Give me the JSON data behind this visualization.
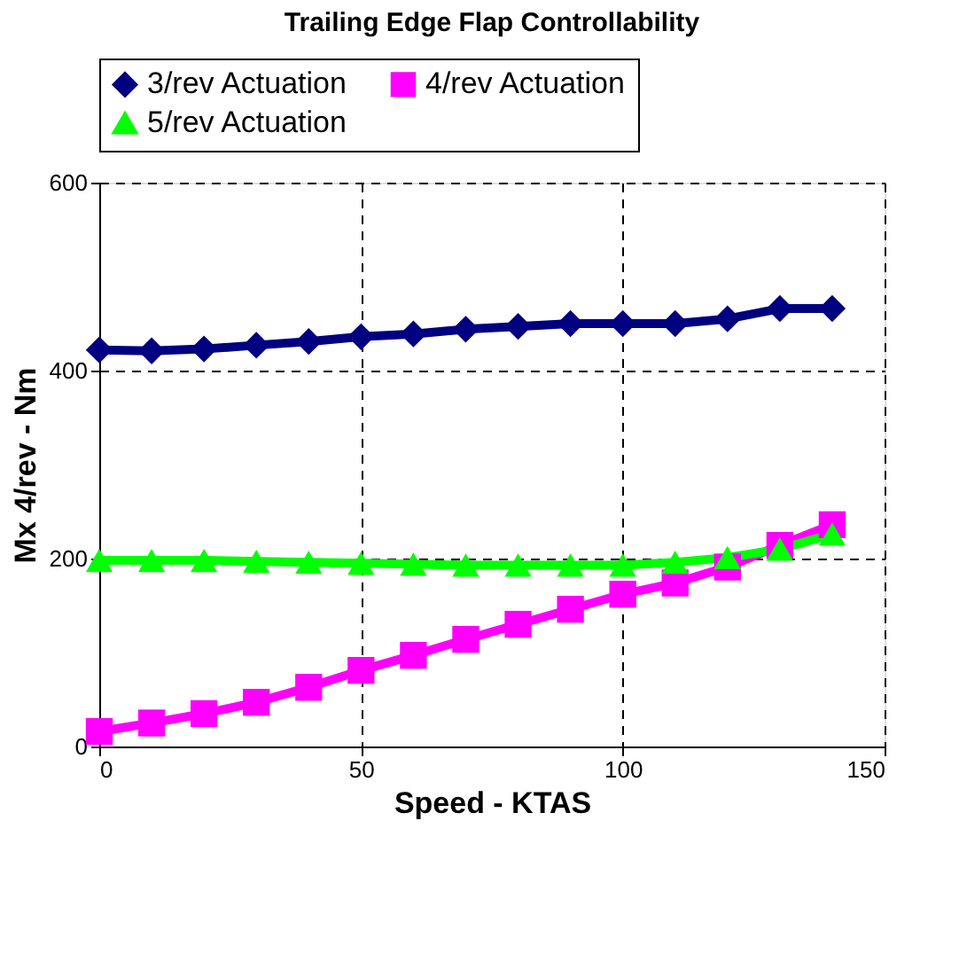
{
  "chart_data": {
    "type": "line",
    "title": "Trailing Edge Flap Controllability",
    "xlabel": "Speed - KTAS",
    "ylabel": "Mx 4/rev - Nm",
    "x": [
      0,
      10,
      20,
      30,
      40,
      50,
      60,
      70,
      80,
      90,
      100,
      110,
      120,
      130,
      140
    ],
    "series": [
      {
        "name": "3/rev Actuation",
        "color": "#000080",
        "marker": "diamond",
        "values": [
          422,
          421,
          423,
          427,
          431,
          436,
          439,
          444,
          447,
          450,
          450,
          450,
          455,
          466,
          466
        ]
      },
      {
        "name": "4/rev Actuation",
        "color": "#ff00ff",
        "marker": "square",
        "values": [
          16,
          25,
          35,
          47,
          63,
          81,
          97,
          114,
          130,
          146,
          162,
          174,
          191,
          214,
          236
        ]
      },
      {
        "name": "5/rev Actuation",
        "color": "#00ff00",
        "marker": "triangle",
        "values": [
          198,
          198,
          198,
          197,
          196,
          195,
          194,
          193,
          193,
          193,
          193,
          196,
          201,
          210,
          226
        ]
      }
    ],
    "xlim": [
      0,
      150
    ],
    "xticks": [
      0,
      50,
      100,
      150
    ],
    "ylim": [
      0,
      600
    ],
    "yticks": [
      0,
      200,
      400,
      600
    ],
    "grid": true,
    "legend": "top",
    "line_style": "solid"
  }
}
